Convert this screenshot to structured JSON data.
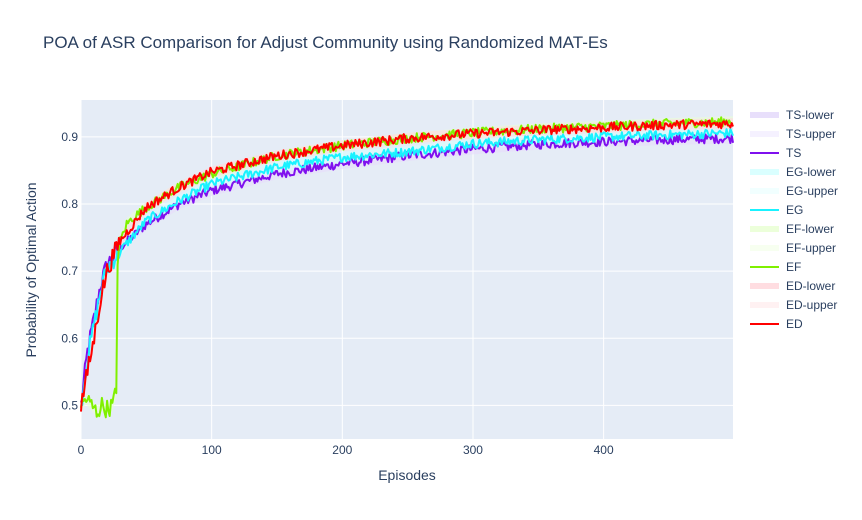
{
  "chart_data": {
    "type": "line",
    "title": "POA of ASR Comparison for Adjust Community using Randomized MAT-Es",
    "xlabel": "Episodes",
    "ylabel": "Probability of Optimal Action",
    "xlim": [
      0,
      499
    ],
    "ylim": [
      0.45,
      0.955
    ],
    "xticks": [
      0,
      100,
      200,
      300,
      400
    ],
    "yticks": [
      0.5,
      0.6,
      0.7,
      0.8,
      0.9
    ],
    "grid": true,
    "legend_position": "right",
    "series": [
      {
        "name": "TS-lower",
        "color": "#e6dcfb",
        "role": "band"
      },
      {
        "name": "TS-upper",
        "color": "#f4efff",
        "role": "band"
      },
      {
        "name": "TS",
        "color": "#7f10ee",
        "role": "mean",
        "x": [
          0,
          5,
          10,
          15,
          20,
          30,
          50,
          75,
          100,
          150,
          200,
          250,
          300,
          350,
          400,
          450,
          499
        ],
        "values": [
          0.5,
          0.58,
          0.63,
          0.68,
          0.71,
          0.735,
          0.77,
          0.8,
          0.82,
          0.845,
          0.86,
          0.872,
          0.882,
          0.889,
          0.893,
          0.896,
          0.898
        ]
      },
      {
        "name": "EG-lower",
        "color": "#d6ffff",
        "role": "band"
      },
      {
        "name": "EG-upper",
        "color": "#efffff",
        "role": "band"
      },
      {
        "name": "EG",
        "color": "#19f2ff",
        "role": "mean",
        "x": [
          0,
          5,
          10,
          15,
          20,
          30,
          50,
          75,
          100,
          150,
          200,
          250,
          300,
          350,
          400,
          450,
          499
        ],
        "values": [
          0.5,
          0.57,
          0.62,
          0.67,
          0.705,
          0.73,
          0.775,
          0.805,
          0.83,
          0.855,
          0.87,
          0.878,
          0.89,
          0.896,
          0.9,
          0.903,
          0.906
        ]
      },
      {
        "name": "EF-lower",
        "color": "#eaffd6",
        "role": "band"
      },
      {
        "name": "EF-upper",
        "color": "#f6ffee",
        "role": "band"
      },
      {
        "name": "EF",
        "color": "#7ff000",
        "role": "mean",
        "x": [
          0,
          4,
          8,
          12,
          16,
          20,
          24,
          27,
          28,
          30,
          35,
          40,
          50,
          75,
          100,
          150,
          200,
          250,
          300,
          350,
          400,
          450,
          499
        ],
        "values": [
          0.5,
          0.51,
          0.5,
          0.49,
          0.5,
          0.495,
          0.5,
          0.52,
          0.72,
          0.745,
          0.77,
          0.78,
          0.795,
          0.825,
          0.845,
          0.872,
          0.887,
          0.898,
          0.906,
          0.912,
          0.916,
          0.92,
          0.923
        ]
      },
      {
        "name": "ED-lower",
        "color": "#ffd9de",
        "role": "band"
      },
      {
        "name": "ED-upper",
        "color": "#ffeff1",
        "role": "band"
      },
      {
        "name": "ED",
        "color": "#ff0000",
        "role": "mean",
        "x": [
          0,
          5,
          10,
          15,
          20,
          25,
          30,
          40,
          50,
          75,
          100,
          150,
          200,
          250,
          300,
          350,
          400,
          450,
          499
        ],
        "values": [
          0.5,
          0.55,
          0.6,
          0.66,
          0.7,
          0.725,
          0.745,
          0.77,
          0.795,
          0.825,
          0.848,
          0.872,
          0.887,
          0.898,
          0.905,
          0.91,
          0.914,
          0.918,
          0.92
        ]
      }
    ]
  }
}
